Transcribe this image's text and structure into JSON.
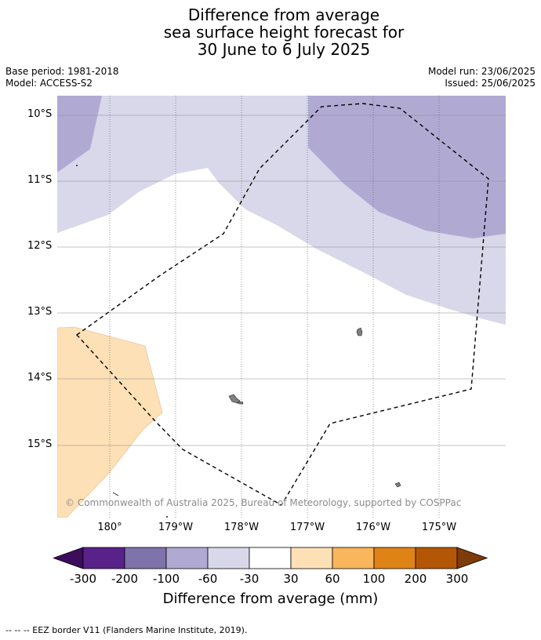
{
  "title": {
    "line1": "Difference from average",
    "line2": "sea surface height forecast for",
    "line3": "30 June to 6 July 2025"
  },
  "meta": {
    "base_period": "Base period: 1981-2018",
    "model": "Model: ACCESS-S2",
    "model_run": "Model run: 23/06/2025",
    "issued": "Issued: 25/06/2025"
  },
  "map": {
    "lat_labels": [
      "10°S",
      "11°S",
      "12°S",
      "13°S",
      "14°S",
      "15°S"
    ],
    "lon_labels": [
      "180°",
      "179°W",
      "178°W",
      "177°W",
      "176°W",
      "175°W"
    ],
    "copyright": "© Commonwealth of Australia 2025, Bureau of Meteorology, supported by COSPPac",
    "colors": {
      "neg30_60": "#d8d8ea",
      "neg60_100": "#b0aad3",
      "pos30_60": "#fde0b6",
      "land": "#808080",
      "eez": "#000000"
    }
  },
  "colorbar": {
    "labels": [
      "-300",
      "-200",
      "-100",
      "-60",
      "-30",
      "30",
      "60",
      "100",
      "200",
      "300"
    ],
    "colors": [
      "#3b0d5a",
      "#59228a",
      "#7f73ac",
      "#b0aad3",
      "#d8d8ea",
      "#ffffff",
      "#fde0b6",
      "#f9b65c",
      "#e08316",
      "#b35706",
      "#7f3b08"
    ],
    "title": "Difference from average (mm)"
  },
  "footer": "--  --  -- EEZ border V11 (Flanders Marine Institute, 2019)."
}
